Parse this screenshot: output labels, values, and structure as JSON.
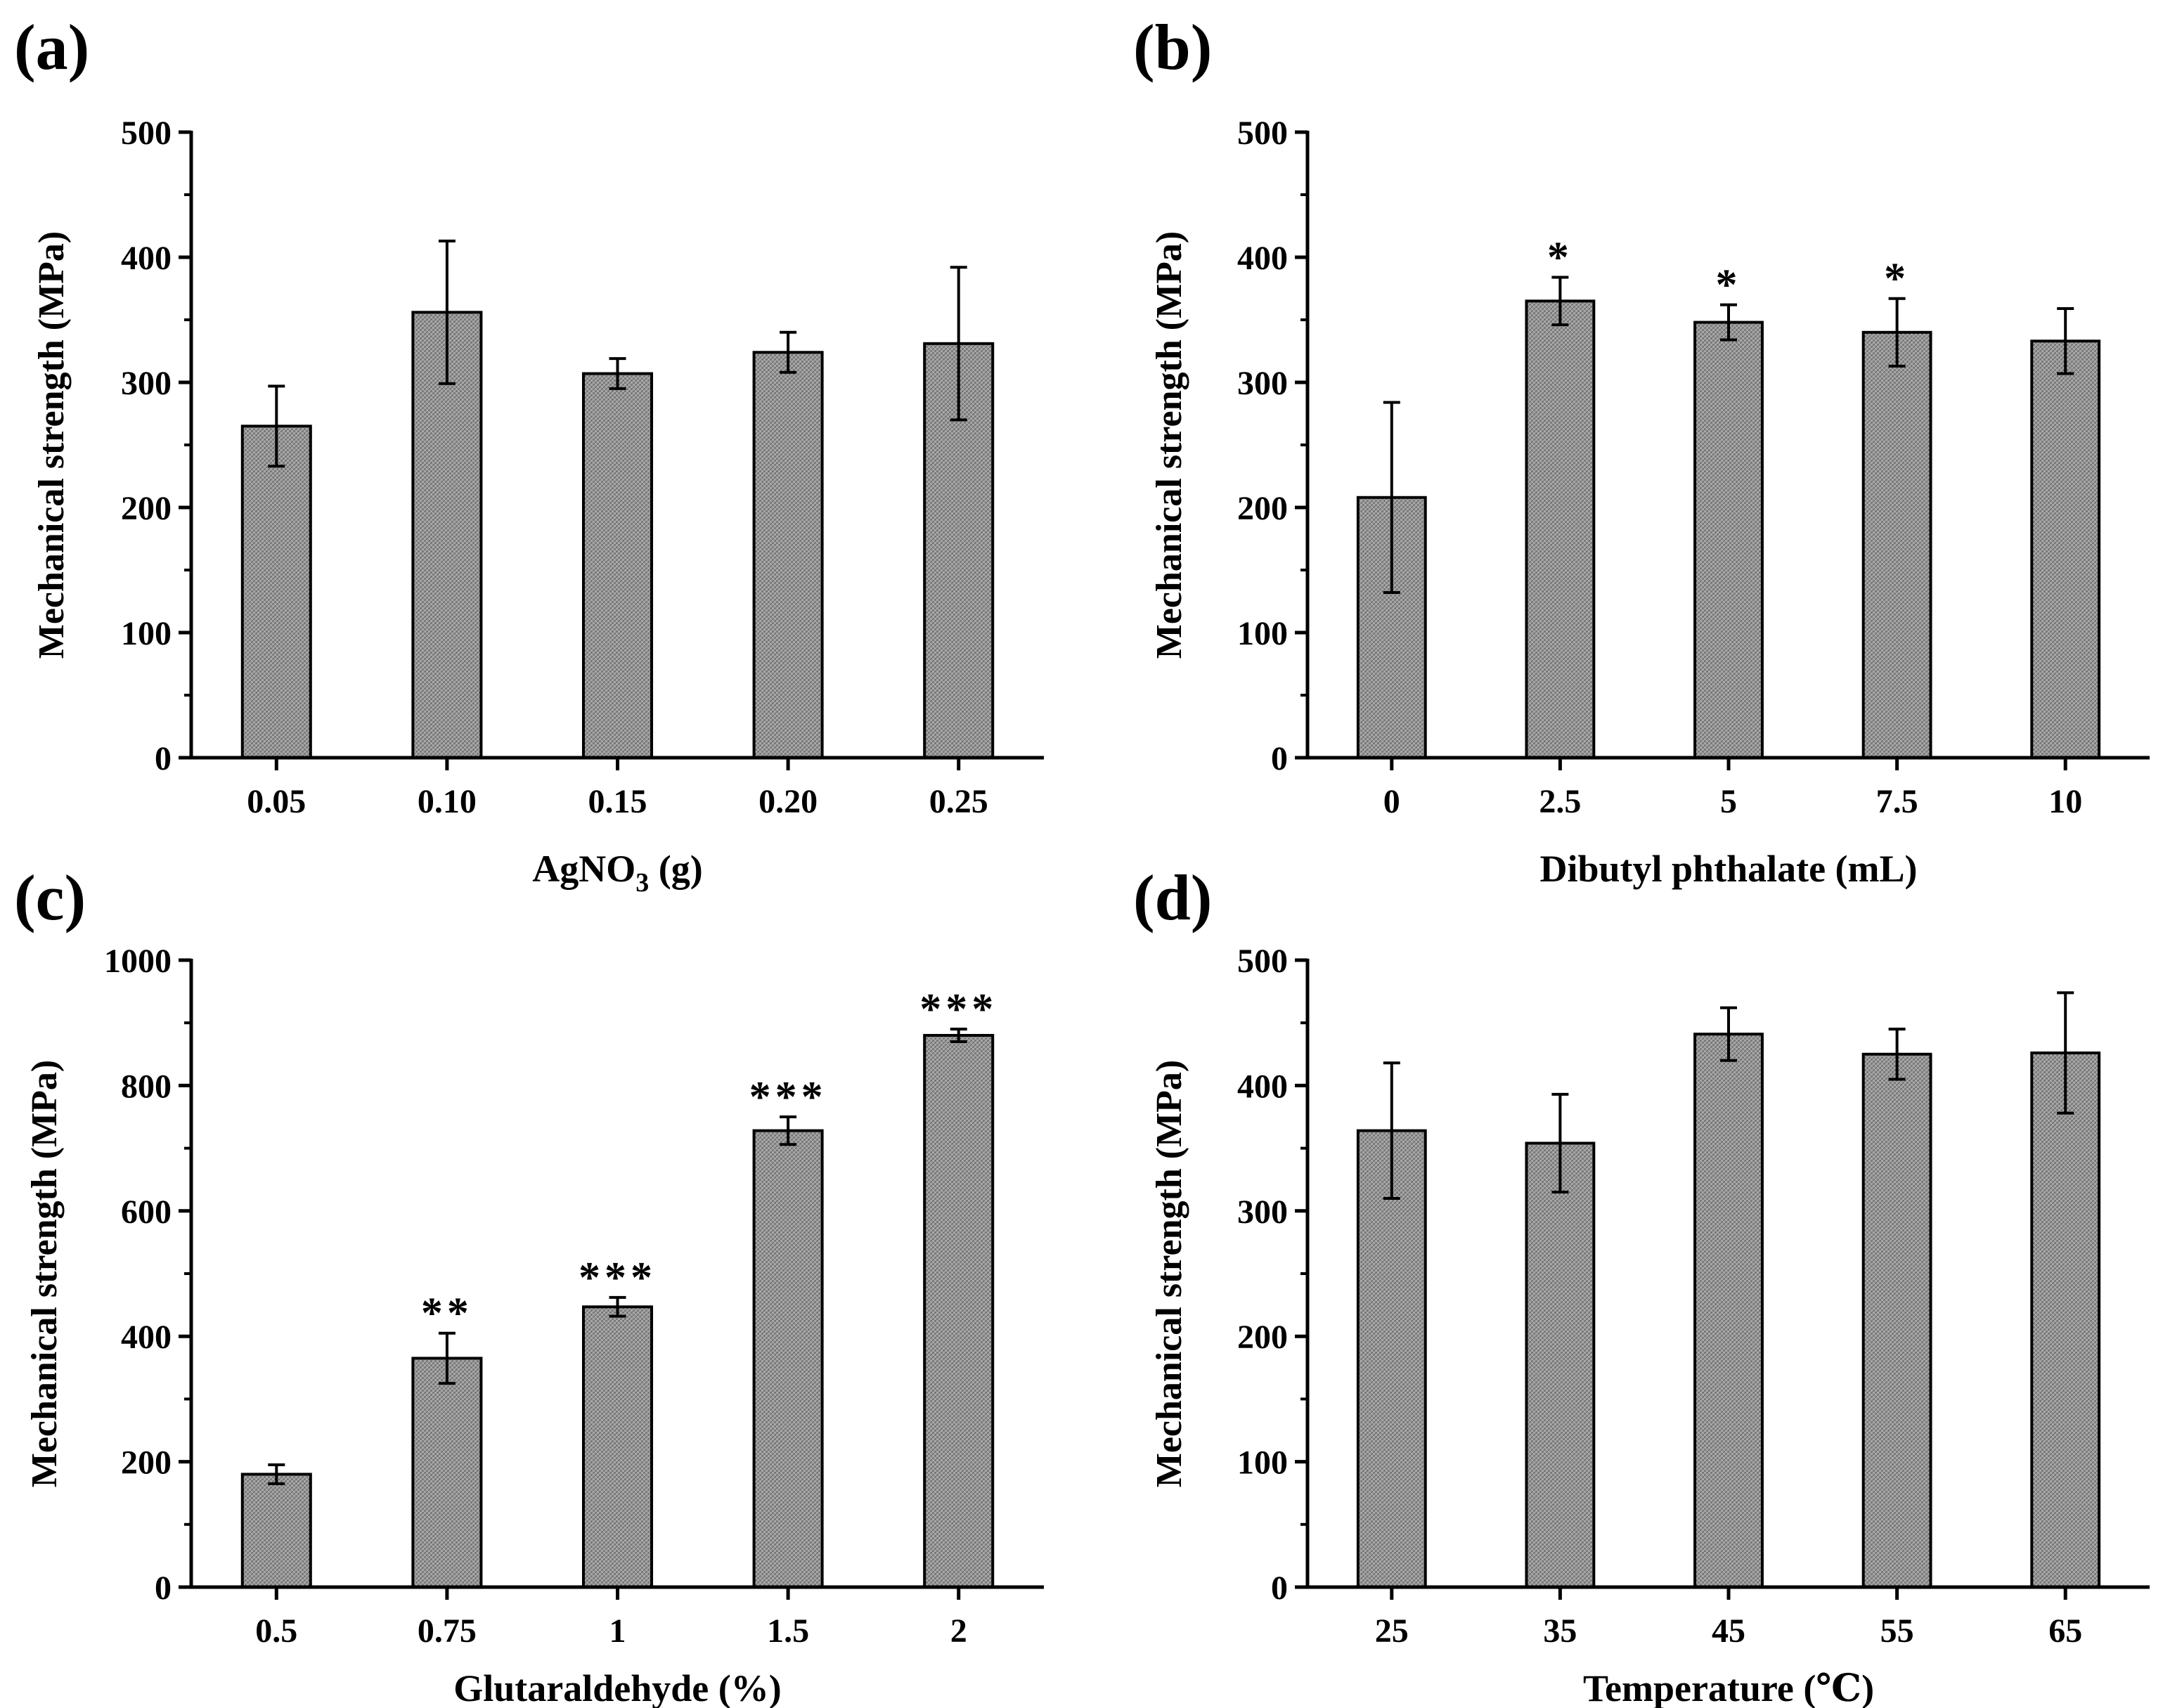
{
  "chart_data": [
    {
      "type": "bar",
      "panel_label": "(a)",
      "categories": [
        "0.05",
        "0.10",
        "0.15",
        "0.20",
        "0.25"
      ],
      "values": [
        265,
        356,
        307,
        324,
        331
      ],
      "errors": [
        32,
        57,
        12,
        16,
        61
      ],
      "significance": [
        "",
        "",
        "",
        "",
        ""
      ],
      "xlabel_main": "AgNO",
      "xlabel_sub": "3",
      "xlabel_tail": " (g)",
      "ylabel": "Mechanical strength  (MPa)",
      "yticks": [
        "0",
        "100",
        "200",
        "300",
        "400",
        "500"
      ],
      "ylim": [
        0,
        500
      ],
      "grid": false,
      "bar_color": "#8c8c8c"
    },
    {
      "type": "bar",
      "panel_label": "(b)",
      "categories": [
        "0",
        "2.5",
        "5",
        "7.5",
        "10"
      ],
      "values": [
        208,
        365,
        348,
        340,
        333
      ],
      "errors": [
        76,
        19,
        14,
        27,
        26
      ],
      "significance": [
        "",
        "*",
        "*",
        "*",
        ""
      ],
      "xlabel_main": "Dibutyl phthalate  (mL)",
      "xlabel_sub": "",
      "xlabel_tail": "",
      "ylabel": "Mechanical strength  (MPa)",
      "yticks": [
        "0",
        "100",
        "200",
        "300",
        "400",
        "500"
      ],
      "ylim": [
        0,
        500
      ],
      "grid": false,
      "bar_color": "#8c8c8c"
    },
    {
      "type": "bar",
      "panel_label": "(c)",
      "categories": [
        "0.5",
        "0.75",
        "1",
        "1.5",
        "2"
      ],
      "values": [
        180,
        365,
        447,
        728,
        880
      ],
      "errors": [
        15,
        40,
        15,
        22,
        10
      ],
      "significance": [
        "",
        "**",
        "***",
        "***",
        "***"
      ],
      "xlabel_main": "Glutaraldehyde   (%)",
      "xlabel_sub": "",
      "xlabel_tail": "",
      "ylabel": "Mechanical strength  (MPa)",
      "yticks": [
        "0",
        "200",
        "400",
        "600",
        "800",
        "1000"
      ],
      "ylim": [
        0,
        1000
      ],
      "grid": false,
      "bar_color": "#8c8c8c"
    },
    {
      "type": "bar",
      "panel_label": "(d)",
      "categories": [
        "25",
        "35",
        "45",
        "55",
        "65"
      ],
      "values": [
        364,
        354,
        441,
        425,
        426
      ],
      "errors": [
        54,
        39,
        21,
        20,
        48
      ],
      "significance": [
        "",
        "",
        "",
        "",
        ""
      ],
      "xlabel_main": "Temperature (℃)",
      "xlabel_sub": "",
      "xlabel_tail": "",
      "ylabel": "Mechanical strength  (MPa)",
      "yticks": [
        "0",
        "100",
        "200",
        "300",
        "400",
        "500"
      ],
      "ylim": [
        0,
        500
      ],
      "grid": false,
      "bar_color": "#8c8c8c"
    }
  ]
}
